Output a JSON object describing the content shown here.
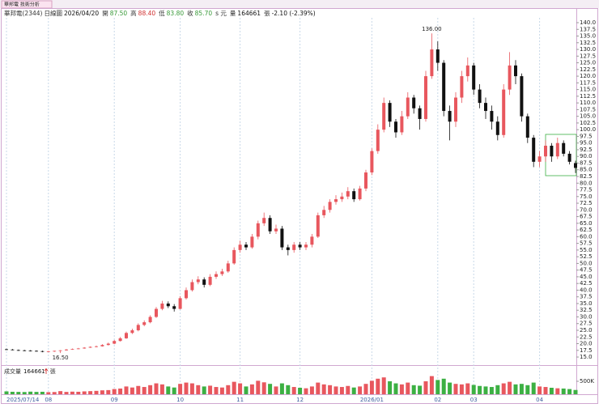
{
  "header": {
    "tab": "華邦電 技術分析",
    "stock": "華邦電(2344)",
    "period": "日線圖",
    "date": "2026/04/20",
    "open_label": "開",
    "open": "87.50",
    "high_label": "高",
    "high": "88.40",
    "low_label": "低",
    "low": "83.80",
    "close_label": "收",
    "close": "85.70",
    "close_unit": "s 元",
    "volume_label": "量",
    "volume": "164661",
    "volume_unit": "張",
    "change": "-2.10 (-2.39%)"
  },
  "chart_data": {
    "type": "candlestick",
    "categories": [
      "2025/07/14",
      null,
      null,
      null,
      null,
      null,
      null,
      "08",
      null,
      null,
      null,
      null,
      null,
      null,
      null,
      null,
      null,
      null,
      "09",
      null,
      null,
      null,
      null,
      null,
      null,
      null,
      null,
      null,
      null,
      "10",
      null,
      null,
      null,
      null,
      null,
      null,
      null,
      null,
      null,
      "11",
      null,
      null,
      null,
      null,
      null,
      null,
      null,
      null,
      null,
      "12",
      null,
      null,
      null,
      null,
      null,
      null,
      null,
      null,
      null,
      null,
      null,
      "2026/01",
      null,
      null,
      null,
      null,
      null,
      null,
      null,
      null,
      null,
      null,
      "02",
      null,
      null,
      null,
      null,
      null,
      "03",
      null,
      null,
      null,
      null,
      null,
      null,
      null,
      null,
      null,
      null,
      "04",
      null,
      null,
      null,
      null,
      null,
      null
    ],
    "open": [
      17.9,
      17.8,
      17.6,
      17.5,
      17.4,
      17.3,
      17.2,
      17.0,
      17.1,
      17.3,
      17.5,
      17.8,
      18.0,
      18.2,
      18.5,
      18.8,
      19.0,
      19.5,
      20.0,
      21,
      22,
      24,
      25,
      27,
      28,
      30,
      33,
      35,
      34,
      33,
      37,
      40,
      43,
      44,
      42,
      45,
      46,
      47,
      50,
      55,
      57,
      56,
      60,
      65,
      67,
      62,
      63,
      56,
      55,
      57,
      56,
      57,
      60,
      68,
      70,
      73,
      74,
      75,
      77,
      74,
      78,
      84,
      92,
      100,
      110,
      103,
      99,
      105,
      112,
      108,
      104,
      120,
      130,
      125,
      107,
      103,
      112,
      120,
      124,
      115,
      110,
      107,
      103,
      98,
      115,
      124,
      120,
      105,
      97,
      88,
      90,
      94,
      90,
      95,
      91,
      87.5
    ],
    "high": [
      18.1,
      18.0,
      17.8,
      17.7,
      17.6,
      17.5,
      17.4,
      17.3,
      17.4,
      17.6,
      18.0,
      18.2,
      18.4,
      18.7,
      19.0,
      19.3,
      19.8,
      20.4,
      21.4,
      22.5,
      24.5,
      25.6,
      27.6,
      28.7,
      30.6,
      33.7,
      36,
      35.8,
      34.8,
      37.8,
      41,
      44,
      45.2,
      44.8,
      46,
      47,
      48,
      51,
      56,
      58.5,
      58,
      61,
      66,
      69,
      68,
      64.5,
      64,
      57,
      58,
      58,
      58,
      61,
      69,
      71.5,
      74,
      75.5,
      76.5,
      78.5,
      78,
      79,
      85,
      93,
      102,
      112,
      111,
      104,
      107,
      114,
      113,
      109,
      122,
      136,
      133,
      126,
      109,
      114,
      122,
      127,
      125,
      117,
      112,
      109,
      105,
      117,
      129,
      126,
      121,
      106,
      98,
      92,
      96,
      95,
      97,
      96,
      92,
      88.4
    ],
    "low": [
      17.6,
      17.5,
      17.3,
      17.2,
      17.1,
      17.0,
      16.8,
      16.8,
      16.9,
      16.5,
      17.4,
      17.7,
      17.9,
      18.1,
      18.4,
      18.6,
      18.9,
      19.3,
      19.8,
      20.8,
      21.8,
      23.6,
      24.6,
      26.5,
      27.6,
      29.6,
      32.5,
      33.3,
      32,
      32.8,
      36.5,
      39.5,
      42.2,
      41,
      41.5,
      44.2,
      45.3,
      46.5,
      49.5,
      54,
      55,
      55.5,
      59,
      64,
      61,
      61,
      55,
      53,
      54,
      55,
      55,
      56,
      59.5,
      67,
      69,
      72,
      73,
      74,
      73,
      73.5,
      77,
      83,
      91,
      99,
      101,
      97,
      98,
      104,
      106,
      100,
      103,
      119,
      122,
      105,
      96,
      101,
      110,
      118,
      113,
      108,
      104,
      100,
      96,
      97,
      113,
      117,
      103,
      95,
      86,
      86,
      88,
      88,
      89,
      90,
      87,
      83.8
    ],
    "close": [
      17.8,
      17.6,
      17.5,
      17.4,
      17.3,
      17.2,
      17.0,
      17.1,
      17.3,
      17.5,
      17.8,
      18.0,
      18.2,
      18.5,
      18.8,
      19.0,
      19.5,
      20.0,
      21,
      22,
      24,
      25,
      27,
      28,
      30,
      33,
      35,
      34,
      33,
      37,
      40,
      43,
      44,
      42,
      45,
      46,
      47,
      50,
      55,
      57,
      56,
      60,
      65,
      67,
      62,
      63,
      56,
      55,
      57,
      56,
      57,
      60,
      68,
      70,
      73,
      74,
      75,
      77,
      74,
      78,
      84,
      92,
      100,
      110,
      103,
      99,
      105,
      112,
      108,
      104,
      120,
      130,
      125,
      107,
      103,
      112,
      120,
      124,
      115,
      110,
      107,
      103,
      98,
      115,
      124,
      120,
      105,
      97,
      88,
      90,
      94,
      90,
      95,
      91,
      88,
      85.7
    ],
    "volume": [
      110000,
      95000,
      90000,
      85000,
      100000,
      90000,
      95000,
      80000,
      85000,
      120000,
      90000,
      100000,
      95000,
      110000,
      120000,
      130000,
      150000,
      160000,
      200000,
      220000,
      300000,
      260000,
      320000,
      280000,
      350000,
      420000,
      380000,
      300000,
      260000,
      400000,
      450000,
      420000,
      350000,
      300000,
      330000,
      280000,
      260000,
      350000,
      480000,
      420000,
      300000,
      380000,
      520000,
      460000,
      400000,
      300000,
      420000,
      350000,
      280000,
      250000,
      230000,
      300000,
      450000,
      380000,
      350000,
      300000,
      280000,
      320000,
      260000,
      300000,
      400000,
      520000,
      600000,
      650000,
      500000,
      420000,
      380000,
      450000,
      350000,
      330000,
      500000,
      700000,
      550000,
      600000,
      450000,
      400000,
      380000,
      420000,
      360000,
      320000,
      300000,
      280000,
      350000,
      420000,
      480000,
      380000,
      400000,
      350000,
      450000,
      300000,
      280000,
      250000,
      230000,
      220000,
      200000,
      164661
    ],
    "up_color": "#e8575e",
    "down_color": "#111111",
    "volume_up_color": "#e8575e",
    "volume_down_color": "#3cb043",
    "high_label": "136.00",
    "low_label": "16.50",
    "ylim": [
      12.5,
      141
    ],
    "yticks": [
      {
        "value": 140,
        "label": "140.0"
      },
      137.5,
      {
        "value": 135,
        "label": "135.0"
      },
      132.5,
      {
        "value": 130,
        "label": "130.0"
      },
      127.5,
      {
        "value": 125,
        "label": "125.0"
      },
      122.5,
      {
        "value": 120,
        "label": "120.0"
      },
      117.5,
      {
        "value": 115,
        "label": "115.0"
      },
      112.5,
      {
        "value": 110,
        "label": "110.0"
      },
      107.5,
      {
        "value": 105,
        "label": "105.0"
      },
      102.5,
      {
        "value": 100,
        "label": "100.0"
      },
      97.5,
      {
        "value": 95,
        "label": "95.0"
      },
      92.5,
      {
        "value": 90,
        "label": "90.0"
      },
      87.5,
      {
        "value": 85,
        "label": "85.0"
      },
      82.5,
      {
        "value": 80,
        "label": "80.0"
      },
      77.5,
      {
        "value": 75,
        "label": "75.0"
      },
      72.5,
      {
        "value": 70,
        "label": "70.0"
      },
      67.5,
      {
        "value": 65,
        "label": "65.0"
      },
      62.5,
      {
        "value": 60,
        "label": "60.0"
      },
      57.5,
      {
        "value": 55,
        "label": "55.0"
      },
      52.5,
      {
        "value": 50,
        "label": "50.0"
      },
      47.5,
      {
        "value": 45,
        "label": "45.0"
      },
      42.5,
      {
        "value": 40,
        "label": "40.0"
      },
      37.5,
      {
        "value": 35,
        "label": "35.0"
      },
      32.5,
      {
        "value": 30,
        "label": "30.0"
      },
      27.5,
      {
        "value": 25,
        "label": "25.0"
      },
      22.5,
      {
        "value": 20,
        "label": "20.0"
      },
      17.5,
      {
        "value": 15,
        "label": "15.0"
      }
    ],
    "volume_title": "成交量",
    "volume_value": "164661",
    "volume_unit": "張",
    "vlim": [
      0,
      1000000
    ],
    "vticks": [
      {
        "value": 500000,
        "label": "500K"
      }
    ],
    "grid": "x"
  }
}
